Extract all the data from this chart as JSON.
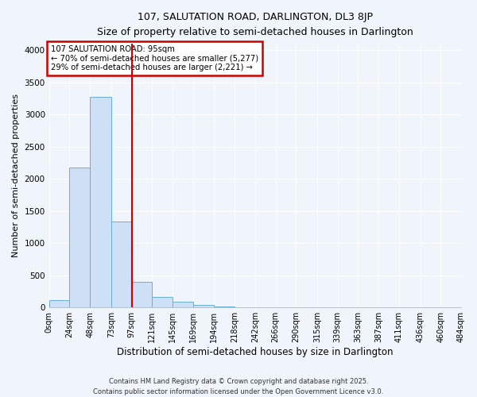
{
  "title": "107, SALUTATION ROAD, DARLINGTON, DL3 8JP",
  "subtitle": "Size of property relative to semi-detached houses in Darlington",
  "xlabel": "Distribution of semi-detached houses by size in Darlington",
  "ylabel": "Number of semi-detached properties",
  "bar_color": "#cde0f5",
  "bar_edge_color": "#6aaed6",
  "bin_edges": [
    0,
    24,
    48,
    73,
    97,
    121,
    145,
    169,
    194,
    218,
    242,
    266,
    290,
    315,
    339,
    363,
    387,
    411,
    436,
    460,
    484
  ],
  "bin_labels": [
    "0sqm",
    "24sqm",
    "48sqm",
    "73sqm",
    "97sqm",
    "121sqm",
    "145sqm",
    "169sqm",
    "194sqm",
    "218sqm",
    "242sqm",
    "266sqm",
    "290sqm",
    "315sqm",
    "339sqm",
    "363sqm",
    "387sqm",
    "411sqm",
    "436sqm",
    "460sqm",
    "484sqm"
  ],
  "counts": [
    110,
    2170,
    3280,
    1340,
    400,
    160,
    90,
    40,
    20,
    5,
    2,
    0,
    0,
    0,
    0,
    0,
    0,
    0,
    0,
    0
  ],
  "vline_x": 97,
  "vline_color": "#cc0000",
  "annotation_title": "107 SALUTATION ROAD: 95sqm",
  "annotation_line1": "← 70% of semi-detached houses are smaller (5,277)",
  "annotation_line2": "29% of semi-detached houses are larger (2,221) →",
  "annotation_box_color": "#ffffff",
  "annotation_box_edge_color": "#cc0000",
  "ylim": [
    0,
    4100
  ],
  "yticks": [
    0,
    500,
    1000,
    1500,
    2000,
    2500,
    3000,
    3500,
    4000
  ],
  "bg_color": "#f0f4fb",
  "grid_color": "#ffffff",
  "footer_line1": "Contains HM Land Registry data © Crown copyright and database right 2025.",
  "footer_line2": "Contains public sector information licensed under the Open Government Licence v3.0."
}
